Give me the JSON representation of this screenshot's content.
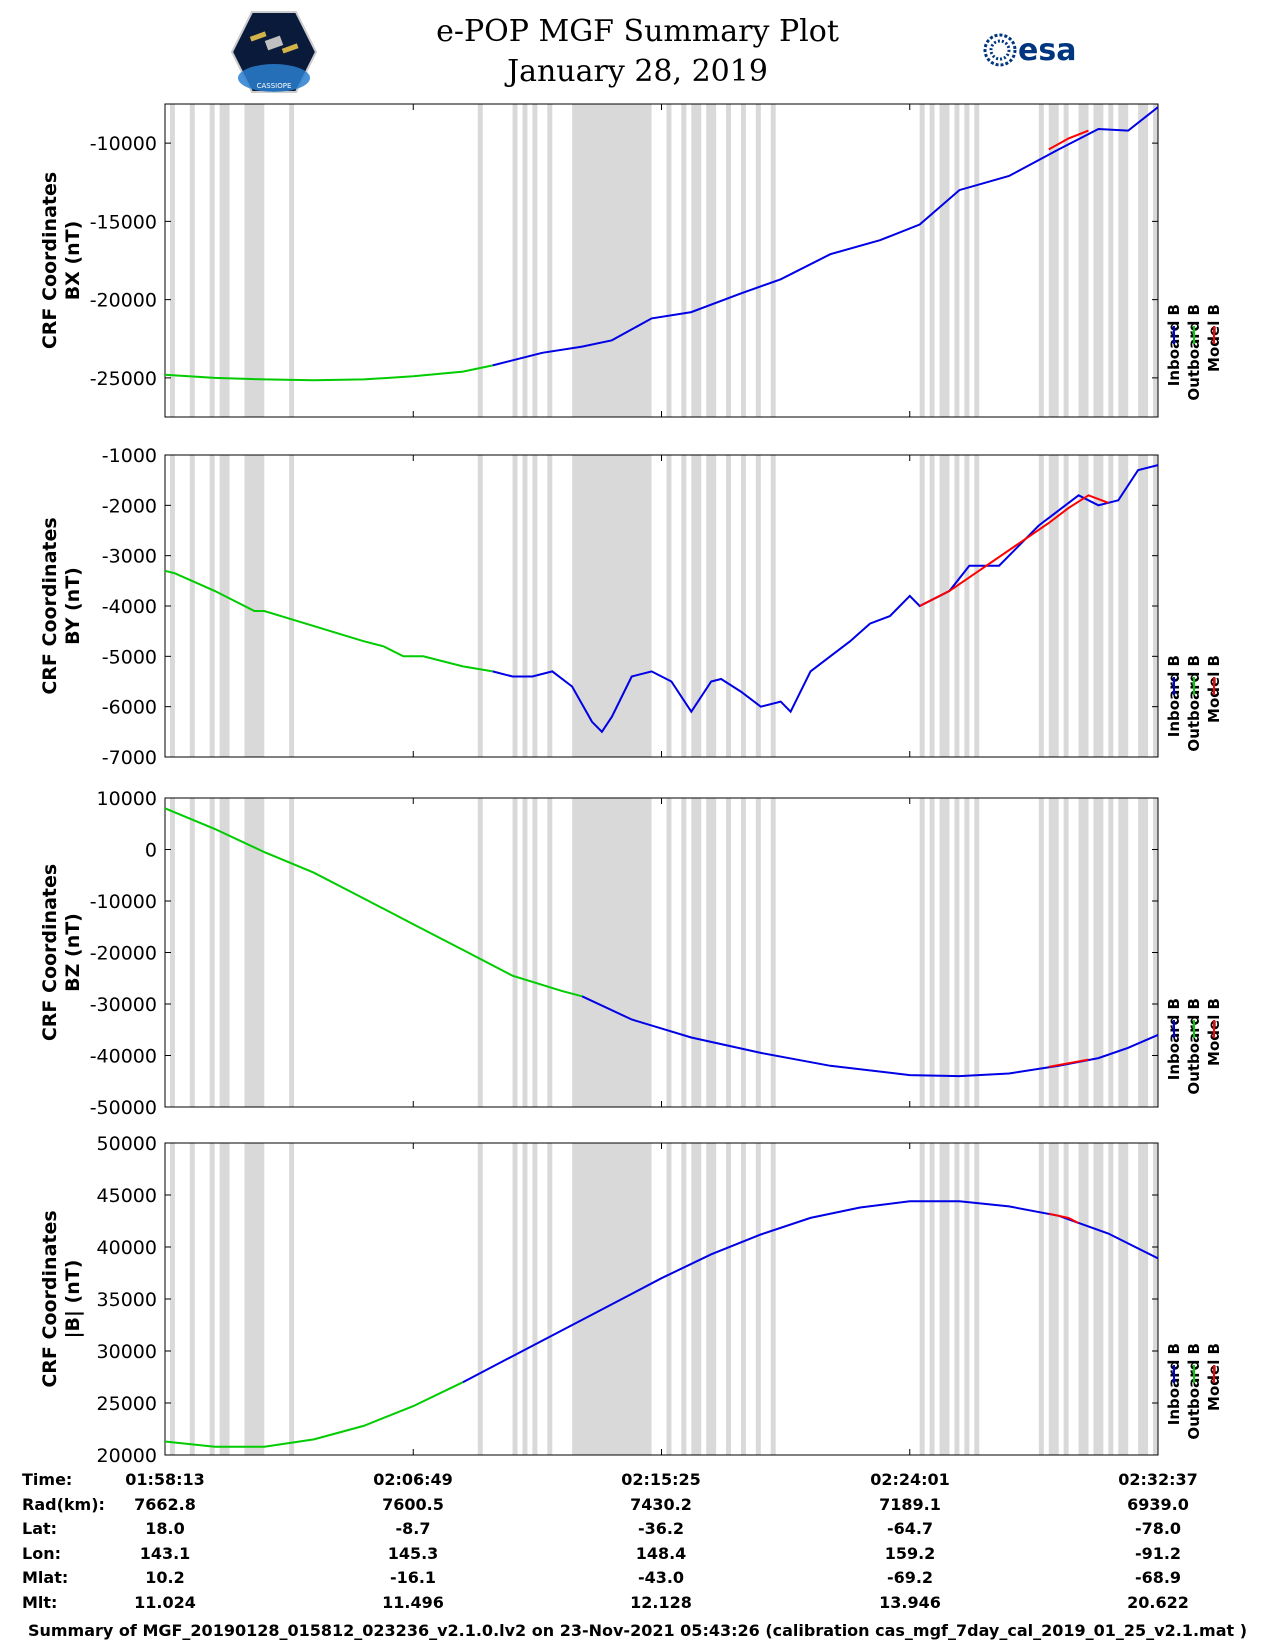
{
  "title": "e-POP MGF Summary Plot",
  "date": "January 28, 2019",
  "logo_left_text": "CASSIOPE",
  "logo_right_text": "esa",
  "legend": {
    "labels": [
      "Inboard B",
      "Outboard B",
      "Model B"
    ],
    "colors": [
      "#0000e6",
      "#00cc00",
      "#ff0000"
    ]
  },
  "gap_color": "#d9d9d9",
  "chart_data": [
    {
      "type": "line",
      "ylabel_line1": "CRF Coordinates",
      "ylabel_line2": "BX (nT)",
      "ylim": [
        -27500,
        -7500
      ],
      "yticks": [
        -10000,
        -15000,
        -20000,
        -25000
      ],
      "ytick_labels": [
        "-10000",
        "-15000",
        "-20000",
        "-25000"
      ],
      "xrange": [
        0,
        1
      ],
      "series": [
        {
          "name": "Outboard B",
          "color": "#00cc00",
          "x": [
            0,
            0.05,
            0.1,
            0.15,
            0.2,
            0.25,
            0.3,
            0.33
          ],
          "y": [
            -24800,
            -25000,
            -25100,
            -25150,
            -25100,
            -24900,
            -24600,
            -24200
          ]
        },
        {
          "name": "Inboard B",
          "color": "#0000e6",
          "x": [
            0.33,
            0.38,
            0.42,
            0.45,
            0.49,
            0.53,
            0.58,
            0.62,
            0.67,
            0.72,
            0.76,
            0.8,
            0.85,
            0.9,
            0.94,
            0.97,
            1.0
          ],
          "y": [
            -24200,
            -23400,
            -23000,
            -22600,
            -21200,
            -20800,
            -19600,
            -18700,
            -17100,
            -16200,
            -15200,
            -13000,
            -12100,
            -10400,
            -9100,
            -9200,
            -7700
          ]
        },
        {
          "name": "Model B",
          "color": "#ff0000",
          "x": [
            0.89,
            0.91,
            0.93
          ],
          "y": [
            -10400,
            -9700,
            -9200
          ]
        }
      ]
    },
    {
      "type": "line",
      "ylabel_line1": "CRF Coordinates",
      "ylabel_line2": "BY (nT)",
      "ylim": [
        -7000,
        -1000
      ],
      "yticks": [
        -1000,
        -2000,
        -3000,
        -4000,
        -5000,
        -6000,
        -7000
      ],
      "ytick_labels": [
        "-1000",
        "-2000",
        "-3000",
        "-4000",
        "-5000",
        "-6000",
        "-7000"
      ],
      "xrange": [
        0,
        1
      ],
      "series": [
        {
          "name": "Outboard B",
          "color": "#00cc00",
          "x": [
            0,
            0.01,
            0.05,
            0.09,
            0.1,
            0.15,
            0.2,
            0.22,
            0.24,
            0.26,
            0.3,
            0.33
          ],
          "y": [
            -3300,
            -3350,
            -3700,
            -4100,
            -4100,
            -4400,
            -4700,
            -4800,
            -5000,
            -5000,
            -5200,
            -5300
          ]
        },
        {
          "name": "Inboard B",
          "color": "#0000e6",
          "x": [
            0.33,
            0.35,
            0.37,
            0.39,
            0.41,
            0.43,
            0.44,
            0.45,
            0.47,
            0.49,
            0.51,
            0.53,
            0.55,
            0.56,
            0.58,
            0.6,
            0.62,
            0.63,
            0.65,
            0.67,
            0.69,
            0.71,
            0.73,
            0.75,
            0.76,
            0.79,
            0.81,
            0.84,
            0.86,
            0.88,
            0.9,
            0.92,
            0.94,
            0.96,
            0.98,
            1.0
          ],
          "y": [
            -5300,
            -5400,
            -5400,
            -5300,
            -5600,
            -6300,
            -6500,
            -6200,
            -5400,
            -5300,
            -5500,
            -6100,
            -5500,
            -5450,
            -5700,
            -6000,
            -5900,
            -6100,
            -5300,
            -5000,
            -4700,
            -4350,
            -4200,
            -3800,
            -4000,
            -3700,
            -3200,
            -3200,
            -2800,
            -2400,
            -2100,
            -1800,
            -2000,
            -1900,
            -1300,
            -1200
          ]
        },
        {
          "name": "Model B",
          "color": "#ff0000",
          "x": [
            0.76,
            0.77,
            0.79,
            0.89,
            0.91,
            0.93,
            0.95
          ],
          "y": [
            -4000,
            -3900,
            -3700,
            -2350,
            -2050,
            -1800,
            -1950
          ]
        }
      ]
    },
    {
      "type": "line",
      "ylabel_line1": "CRF Coordinates",
      "ylabel_line2": "BZ (nT)",
      "ylim": [
        -50000,
        10000
      ],
      "yticks": [
        10000,
        0,
        -10000,
        -20000,
        -30000,
        -40000,
        -50000
      ],
      "ytick_labels": [
        "10000",
        "0",
        "-10000",
        "-20000",
        "-30000",
        "-40000",
        "-50000"
      ],
      "xrange": [
        0,
        1
      ],
      "series": [
        {
          "name": "Outboard B",
          "color": "#00cc00",
          "x": [
            0,
            0.05,
            0.1,
            0.15,
            0.2,
            0.25,
            0.3,
            0.35,
            0.4,
            0.42
          ],
          "y": [
            8000,
            4000,
            -500,
            -4500,
            -9500,
            -14500,
            -19500,
            -24500,
            -27500,
            -28500
          ]
        },
        {
          "name": "Inboard B",
          "color": "#0000e6",
          "x": [
            0.42,
            0.47,
            0.53,
            0.6,
            0.67,
            0.75,
            0.8,
            0.85,
            0.9,
            0.94,
            0.97,
            1.0
          ],
          "y": [
            -28500,
            -33000,
            -36500,
            -39500,
            -42000,
            -43800,
            -44000,
            -43500,
            -42000,
            -40500,
            -38500,
            -36000
          ]
        },
        {
          "name": "Model B",
          "color": "#ff0000",
          "x": [
            0.89,
            0.91,
            0.93
          ],
          "y": [
            -42200,
            -41500,
            -40800
          ]
        }
      ]
    },
    {
      "type": "line",
      "ylabel_line1": "CRF Coordinates",
      "ylabel_line2": "|B| (nT)",
      "ylim": [
        20000,
        50000
      ],
      "yticks": [
        50000,
        45000,
        40000,
        35000,
        30000,
        25000,
        20000
      ],
      "ytick_labels": [
        "50000",
        "45000",
        "40000",
        "35000",
        "30000",
        "25000",
        "20000"
      ],
      "xrange": [
        0,
        1
      ],
      "series": [
        {
          "name": "Outboard B",
          "color": "#00cc00",
          "x": [
            0,
            0.05,
            0.1,
            0.15,
            0.2,
            0.25,
            0.3
          ],
          "y": [
            21300,
            20800,
            20800,
            21500,
            22800,
            24700,
            27000
          ]
        },
        {
          "name": "Inboard B",
          "color": "#0000e6",
          "x": [
            0.3,
            0.35,
            0.4,
            0.45,
            0.5,
            0.55,
            0.6,
            0.65,
            0.7,
            0.75,
            0.8,
            0.85,
            0.9,
            0.95,
            1.0
          ],
          "y": [
            27000,
            29500,
            32000,
            34500,
            37000,
            39300,
            41200,
            42800,
            43800,
            44400,
            44400,
            43900,
            43000,
            41300,
            38900
          ]
        },
        {
          "name": "Model B",
          "color": "#ff0000",
          "x": [
            0.89,
            0.91,
            0.92
          ],
          "y": [
            43200,
            42800,
            42300
          ]
        }
      ]
    }
  ],
  "gap_bands": [
    [
      0.005,
      0.01
    ],
    [
      0.025,
      0.03
    ],
    [
      0.045,
      0.05
    ],
    [
      0.055,
      0.065
    ],
    [
      0.08,
      0.1
    ],
    [
      0.125,
      0.13
    ],
    [
      0.315,
      0.32
    ],
    [
      0.35,
      0.355
    ],
    [
      0.36,
      0.365
    ],
    [
      0.37,
      0.375
    ],
    [
      0.385,
      0.39
    ],
    [
      0.41,
      0.49
    ],
    [
      0.505,
      0.51
    ],
    [
      0.52,
      0.525
    ],
    [
      0.53,
      0.54
    ],
    [
      0.545,
      0.555
    ],
    [
      0.565,
      0.57
    ],
    [
      0.58,
      0.585
    ],
    [
      0.595,
      0.6
    ],
    [
      0.61,
      0.615
    ],
    [
      0.76,
      0.765
    ],
    [
      0.77,
      0.775
    ],
    [
      0.78,
      0.79
    ],
    [
      0.795,
      0.8
    ],
    [
      0.805,
      0.81
    ],
    [
      0.815,
      0.82
    ],
    [
      0.88,
      0.885
    ],
    [
      0.89,
      0.9
    ],
    [
      0.905,
      0.91
    ],
    [
      0.92,
      0.93
    ],
    [
      0.935,
      0.945
    ],
    [
      0.95,
      0.955
    ],
    [
      0.96,
      0.97
    ],
    [
      0.98,
      0.99
    ],
    [
      0.995,
      1.0
    ]
  ],
  "x_ticks": [
    0,
    0.25,
    0.5,
    0.75,
    1.0
  ],
  "orbit_table": {
    "row_labels": [
      "Time:",
      "Rad(km):",
      "Lat:",
      "Lon:",
      "Mlat:",
      "Mlt:"
    ],
    "columns": [
      [
        "01:58:13",
        "7662.8",
        "18.0",
        "143.1",
        "10.2",
        "11.024"
      ],
      [
        "02:06:49",
        "7600.5",
        "-8.7",
        "145.3",
        "-16.1",
        "11.496"
      ],
      [
        "02:15:25",
        "7430.2",
        "-36.2",
        "148.4",
        "-43.0",
        "12.128"
      ],
      [
        "02:24:01",
        "7189.1",
        "-64.7",
        "159.2",
        "-69.2",
        "13.946"
      ],
      [
        "02:32:37",
        "6939.0",
        "-78.0",
        "-91.2",
        "-68.9",
        "20.622"
      ]
    ]
  },
  "footer": "Summary of MGF_20190128_015812_023236_v2.1.0.lv2 on 23-Nov-2021 05:43:26 (calibration cas_mgf_7day_cal_2019_01_25_v2.1.mat )"
}
